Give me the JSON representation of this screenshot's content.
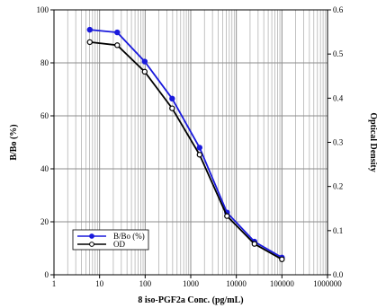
{
  "chart_data": {
    "type": "line",
    "xlabel": "8 iso-PGF2a Conc. (pg/mL)",
    "ylabel_left": "B/Bo (%)",
    "ylabel_right": "Optical Density",
    "x_scale": "log",
    "xlim": [
      1,
      1000000
    ],
    "ylim_left": [
      0,
      100
    ],
    "ylim_right": [
      0,
      0.6
    ],
    "grid": true,
    "legend_position": "bottom-left",
    "x_ticks": [
      "1",
      "10",
      "100",
      "1000",
      "10000",
      "100000",
      "1000000"
    ],
    "y_ticks_left": [
      "0",
      "20",
      "40",
      "60",
      "80",
      "100"
    ],
    "y_ticks_right": [
      "0.0",
      "0.1",
      "0.2",
      "0.3",
      "0.4",
      "0.5",
      "0.6"
    ],
    "series": [
      {
        "name": "B/Bo (%)",
        "axis": "left",
        "color": "#1a1adc",
        "marker": "filled-circle",
        "x": [
          6.1,
          24.4,
          97.7,
          391,
          1563,
          6250,
          25000,
          100000
        ],
        "y": [
          92.5,
          91.5,
          80.5,
          66.5,
          48,
          23.5,
          12.5,
          6.5
        ]
      },
      {
        "name": "OD",
        "axis": "right",
        "color": "#000000",
        "marker": "open-circle",
        "x": [
          6.1,
          24.4,
          97.7,
          391,
          1563,
          6250,
          25000,
          100000
        ],
        "y": [
          0.527,
          0.52,
          0.46,
          0.377,
          0.272,
          0.133,
          0.07,
          0.035
        ]
      }
    ]
  }
}
